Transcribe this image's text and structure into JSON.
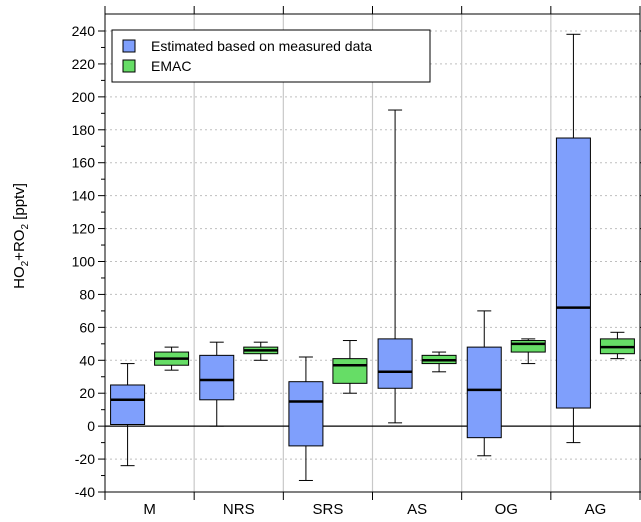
{
  "chart_data": {
    "type": "box",
    "ylabel_main": "HO",
    "ylabel_sub1": "2",
    "ylabel_mid": "+RO",
    "ylabel_sub2": "2",
    "ylabel_unit": " [pptv]",
    "ylim": [
      -40,
      240
    ],
    "y_ticks": [
      "-40",
      "-20",
      "0",
      "20",
      "40",
      "60",
      "80",
      "100",
      "120",
      "140",
      "160",
      "180",
      "200",
      "220",
      "240"
    ],
    "grid": true,
    "legend_position": "top-left",
    "categories": [
      "M",
      "NRS",
      "SRS",
      "AS",
      "OG",
      "AG"
    ],
    "series": [
      {
        "name": "Estimated based on measured data",
        "color": "#7f9ffc",
        "boxes": [
          {
            "min": -24,
            "q1": 1,
            "median": 16,
            "q3": 25,
            "max": 38
          },
          {
            "min": 0,
            "q1": 16,
            "median": 28,
            "q3": 43,
            "max": 51
          },
          {
            "min": -33,
            "q1": -12,
            "median": 15,
            "q3": 27,
            "max": 42
          },
          {
            "min": 2,
            "q1": 23,
            "median": 33,
            "q3": 53,
            "max": 192
          },
          {
            "min": -18,
            "q1": -7,
            "median": 22,
            "q3": 48,
            "max": 70
          },
          {
            "min": -10,
            "q1": 11,
            "median": 72,
            "q3": 175,
            "max": 238
          }
        ]
      },
      {
        "name": "EMAC",
        "color": "#66dd66",
        "boxes": [
          {
            "min": 34,
            "q1": 37,
            "median": 41,
            "q3": 45,
            "max": 48
          },
          {
            "min": 40,
            "q1": 44,
            "median": 46,
            "q3": 48,
            "max": 51
          },
          {
            "min": 20,
            "q1": 26,
            "median": 37,
            "q3": 41,
            "max": 52
          },
          {
            "min": 33,
            "q1": 38,
            "median": 40,
            "q3": 43,
            "max": 45
          },
          {
            "min": 38,
            "q1": 45,
            "median": 50,
            "q3": 52,
            "max": 53
          },
          {
            "min": 41,
            "q1": 44,
            "median": 48,
            "q3": 53,
            "max": 57
          }
        ]
      }
    ]
  }
}
